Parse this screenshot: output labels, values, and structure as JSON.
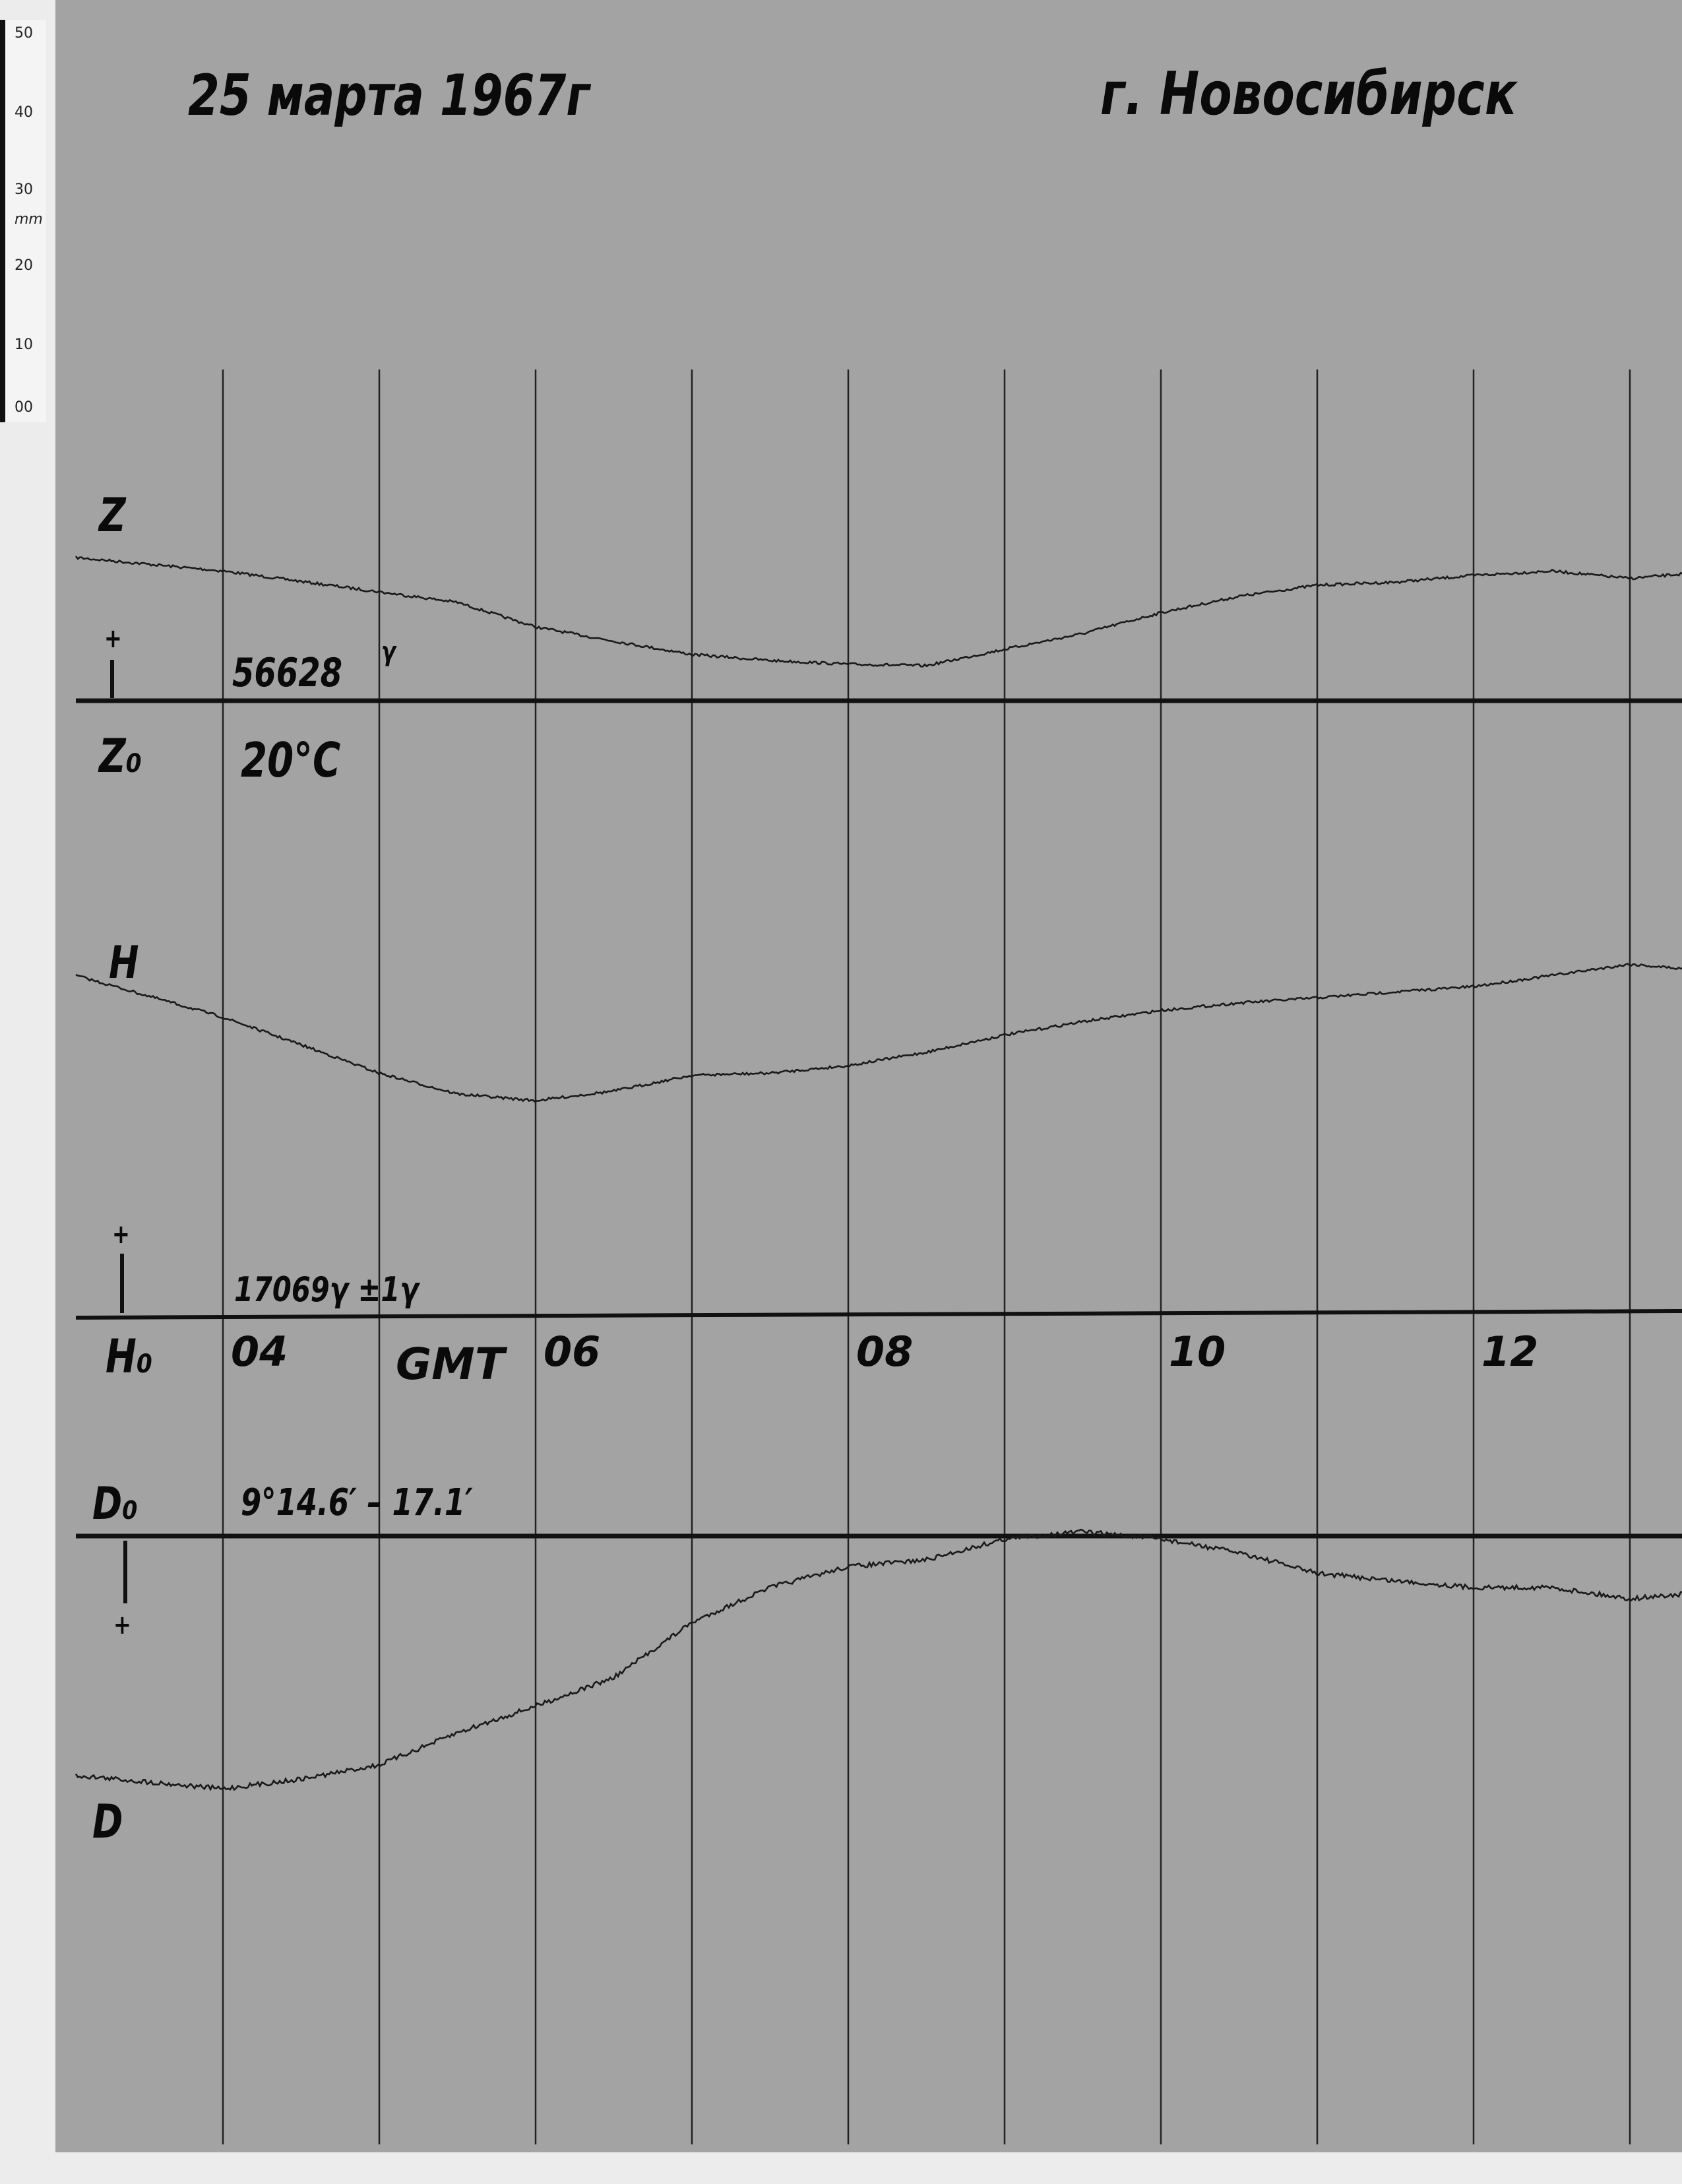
{
  "header": {
    "date": "25 марта 1967г",
    "city": "г. Новосибирск"
  },
  "ruler": {
    "unit": "mm",
    "ticks": [
      "50",
      "40",
      "30",
      "20",
      "10",
      "00"
    ]
  },
  "labels": {
    "z": "Z",
    "z_plus": "+",
    "z_base_value": "56628",
    "z_base_unit": "γ",
    "z0": "Z₀",
    "temperature": "20°C",
    "h": "H",
    "h_plus": "+",
    "h_base_value": "17069γ ±1γ",
    "h0": "H₀",
    "d0": "D₀",
    "d_base_value": "9°14.6′ – 17.1′",
    "d_plus": "+",
    "d": "D"
  },
  "chart_data": {
    "type": "line",
    "title": "",
    "xlabel": "GMT",
    "x_tick_labels": [
      "04",
      "06",
      "08",
      "10",
      "12"
    ],
    "x_gridlines_hours": [
      4,
      5,
      6,
      7,
      8,
      9,
      10,
      11,
      12,
      13
    ],
    "xlim": [
      3.06,
      13.34
    ],
    "y_unit": "mm deflection from baseline",
    "series": [
      {
        "name": "Z",
        "baseline": "Z₀",
        "direction": "up",
        "x": [
          3.06,
          4,
          5,
          5.5,
          6,
          6.5,
          7,
          7.5,
          8,
          8.5,
          9,
          9.5,
          10,
          10.5,
          11,
          11.5,
          12,
          12.5,
          13,
          13.34
        ],
        "y": [
          19.2,
          17.4,
          14.6,
          13.2,
          9.9,
          8.0,
          6.2,
          5.4,
          4.9,
          4.7,
          6.9,
          9.0,
          11.8,
          14.0,
          15.5,
          15.9,
          16.8,
          17.4,
          16.4,
          17.0
        ]
      },
      {
        "name": "H",
        "baseline": "H₀",
        "direction": "up",
        "x": [
          3.06,
          4,
          4.5,
          5,
          5.5,
          6,
          6.5,
          7,
          7.5,
          8,
          8.5,
          9,
          9.5,
          10,
          10.5,
          11,
          11.5,
          12,
          12.5,
          13,
          13.34
        ],
        "y": [
          45.9,
          40.3,
          36.6,
          32.8,
          30.0,
          29.1,
          30.4,
          32.5,
          32.8,
          33.8,
          35.6,
          37.9,
          39.7,
          41.2,
          42.2,
          42.9,
          43.7,
          44.4,
          45.9,
          47.4,
          46.8
        ]
      },
      {
        "name": "D",
        "baseline": "D₀",
        "direction": "down",
        "x": [
          3.06,
          4,
          4.5,
          5,
          5.5,
          6,
          6.5,
          7,
          7.5,
          8,
          8.5,
          9,
          9.5,
          10,
          10.5,
          11,
          11.5,
          12,
          12.5,
          13,
          13.34
        ],
        "y": [
          32.1,
          33.9,
          32.6,
          30.7,
          26.4,
          22.8,
          19.0,
          11.6,
          6.9,
          4.1,
          3.2,
          0.4,
          -0.6,
          0.4,
          2.2,
          5.0,
          6.0,
          6.9,
          6.9,
          8.4,
          7.8
        ]
      }
    ],
    "grid": true,
    "colors": {
      "paper": "#a3a3a3",
      "ink": "#111111"
    }
  }
}
